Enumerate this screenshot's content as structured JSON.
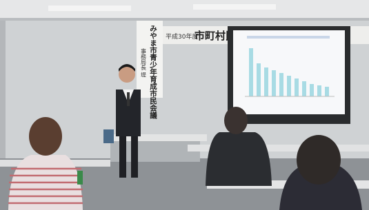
{
  "banner": {
    "year": "平成30年度",
    "title": "市町村民会"
  },
  "vertical_banner": {
    "organization": "みやま市青少年育成市民会議",
    "speaker": "事務局長 堤"
  }
}
